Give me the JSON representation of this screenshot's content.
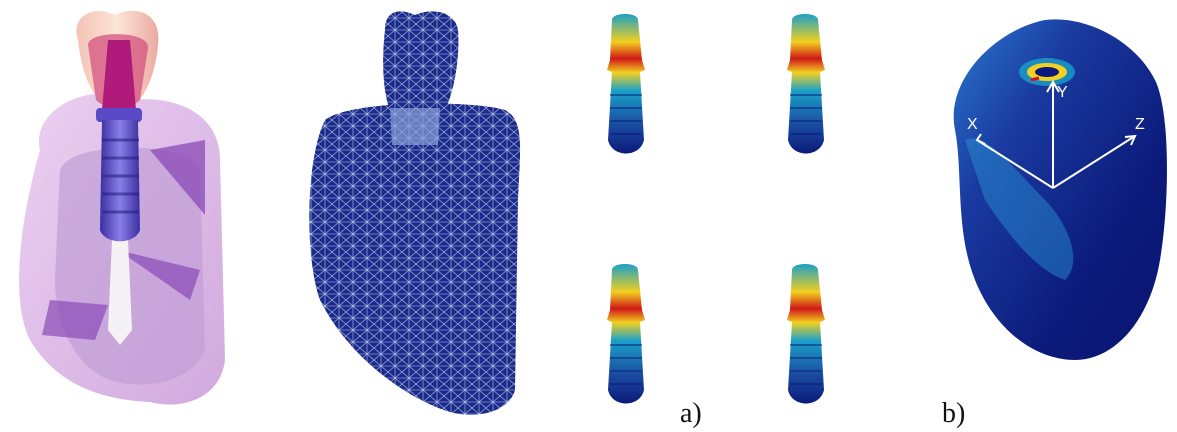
{
  "labels": {
    "panel_a": "a)",
    "panel_b": "b)"
  },
  "axes": {
    "x": "X",
    "y": "Y",
    "z": "Z"
  },
  "colors": {
    "mesh_blue": "#1c2a8a",
    "mesh_line": "#b8c8f0",
    "implant_purple": "#6a5ad0",
    "bone_pink": "#d7b4e6",
    "crown_red": "#e06a8a",
    "stress_low": "#0b1a7a",
    "stress_mid": "#1aa0c8",
    "stress_high": "#f2d020",
    "stress_peak": "#d01818"
  }
}
